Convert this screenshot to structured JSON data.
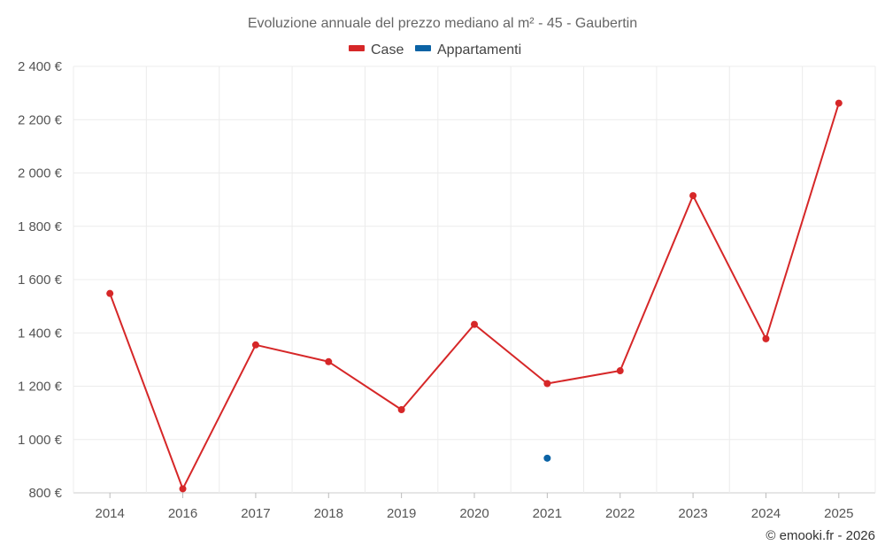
{
  "chart_data": {
    "type": "line",
    "title": "Evoluzione annuale del prezzo mediano al m² - 45 - Gaubertin",
    "categories": [
      "2014",
      "2016",
      "2017",
      "2018",
      "2019",
      "2020",
      "2021",
      "2022",
      "2023",
      "2024",
      "2025"
    ],
    "y_ticks": [
      "800 €",
      "1 000 €",
      "1 200 €",
      "1 400 €",
      "1 600 €",
      "1 800 €",
      "2 000 €",
      "2 200 €",
      "2 400 €"
    ],
    "ylim": [
      800,
      2400
    ],
    "grid": true,
    "legend_position": "top-center",
    "series": [
      {
        "name": "Case",
        "color": "#d62728",
        "values": [
          1548,
          815,
          1355,
          1292,
          1112,
          1432,
          1210,
          1258,
          1915,
          1378,
          2262
        ]
      },
      {
        "name": "Appartamenti",
        "color": "#0b63a5",
        "values": [
          null,
          null,
          null,
          null,
          null,
          null,
          930,
          null,
          null,
          null,
          null
        ]
      }
    ],
    "credit": "© emooki.fr - 2026"
  }
}
